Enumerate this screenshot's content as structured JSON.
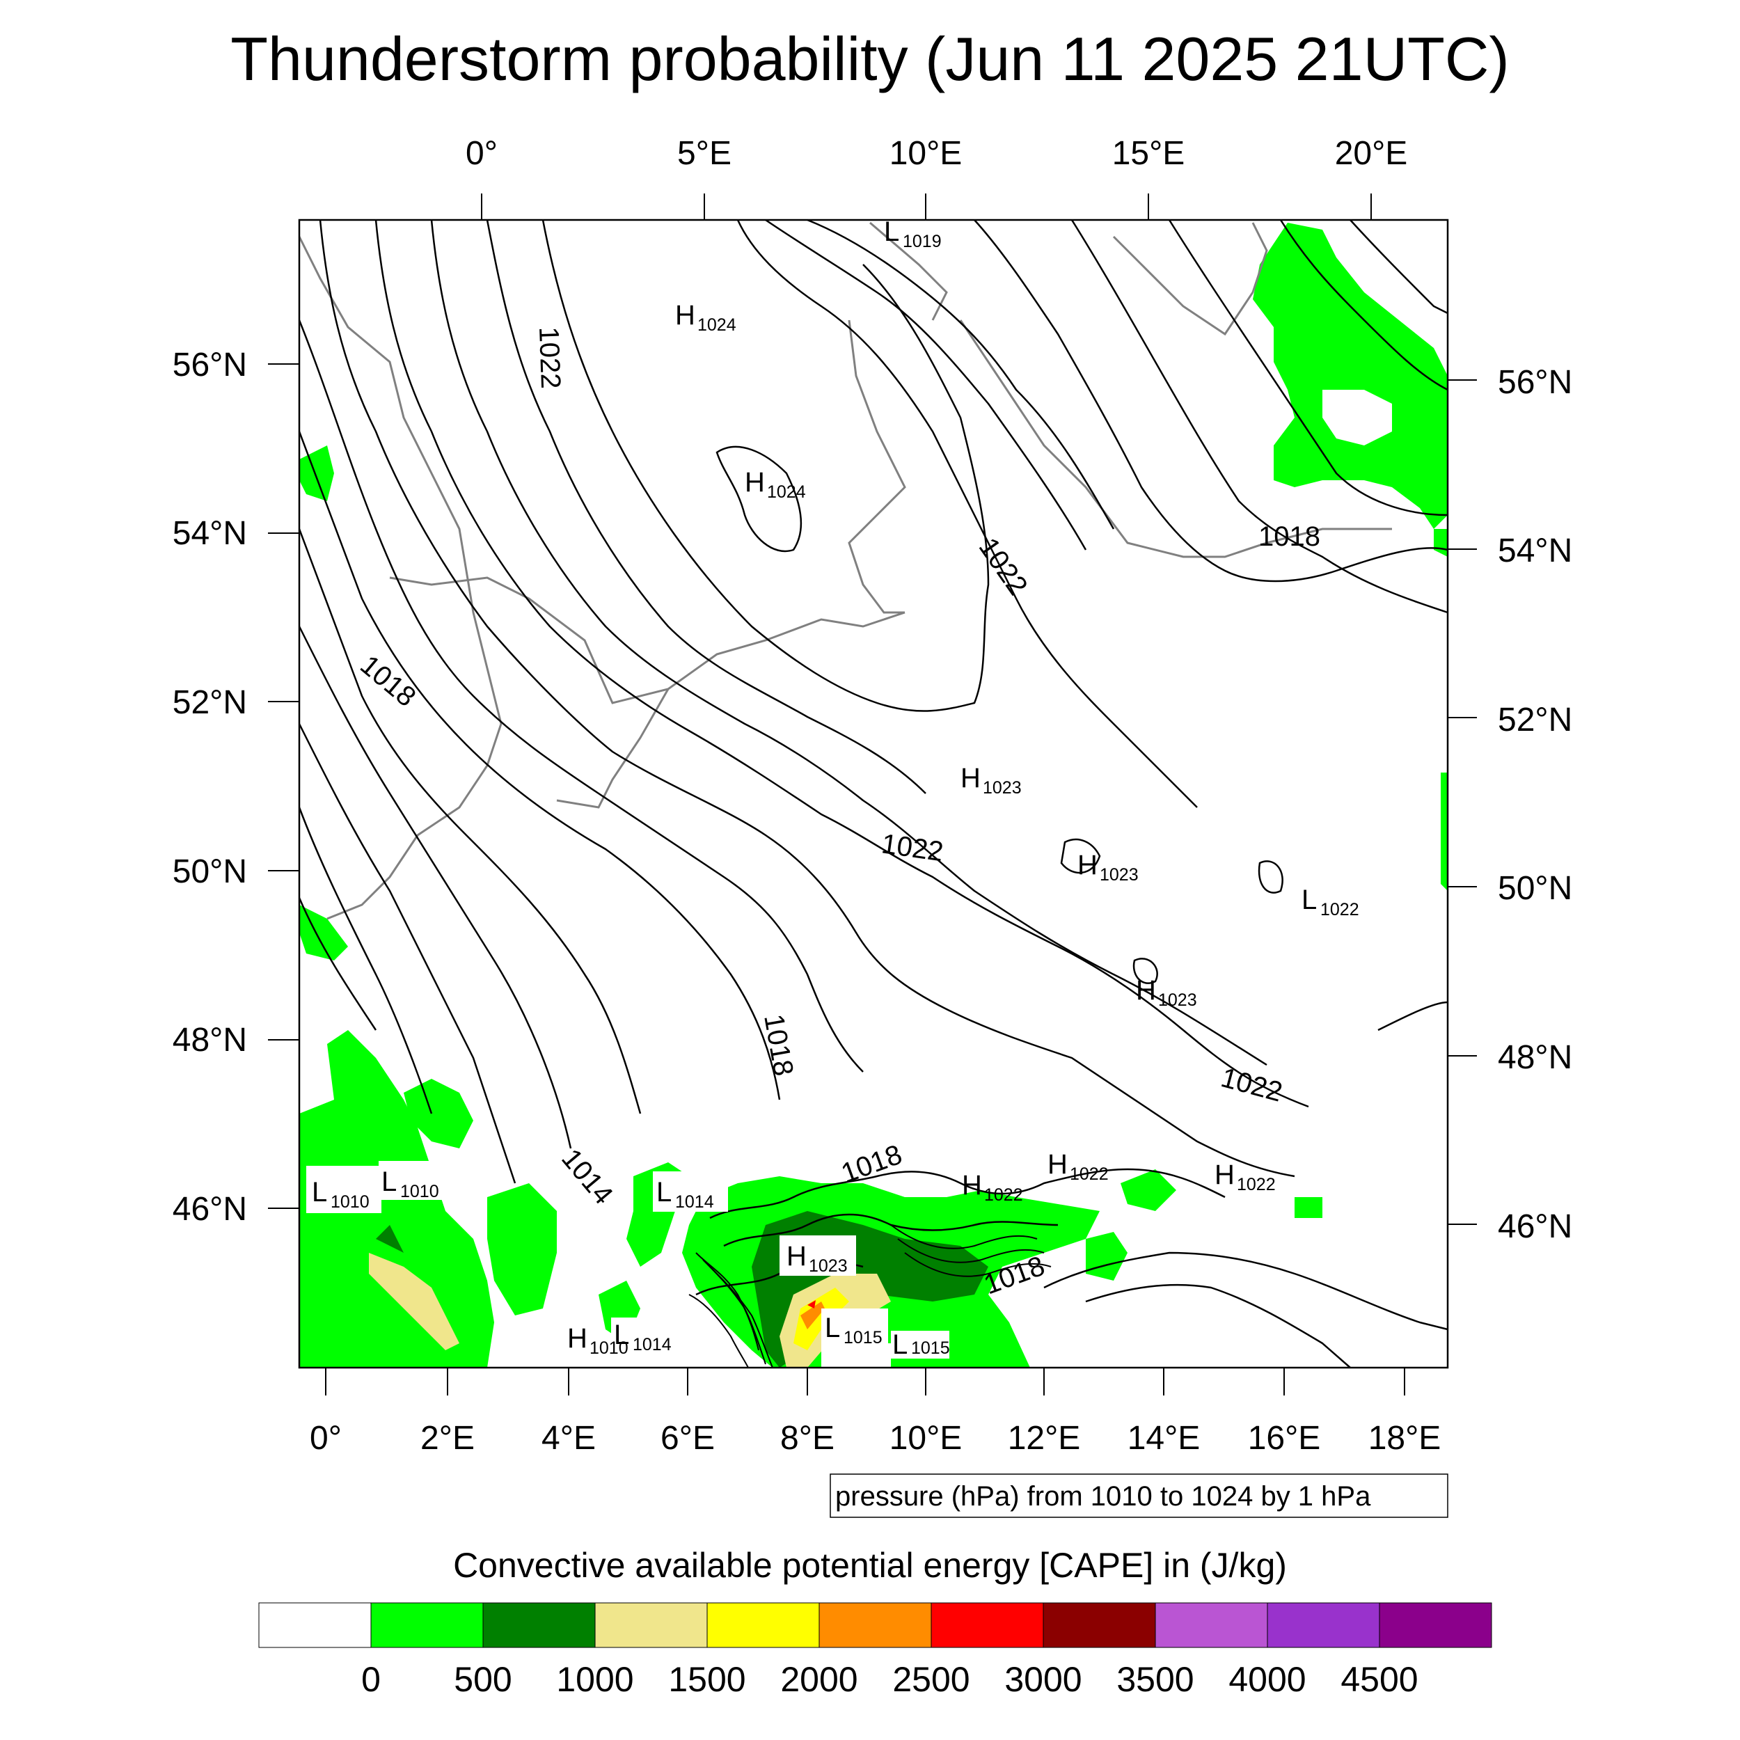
{
  "title": "Thunderstorm probability (Jun 11 2025 21UTC)",
  "top_lon_labels": [
    "0°",
    "5°E",
    "10°E",
    "15°E",
    "20°E"
  ],
  "bottom_lon_labels": [
    "0°",
    "2°E",
    "4°E",
    "6°E",
    "8°E",
    "10°E",
    "12°E",
    "14°E",
    "16°E",
    "18°E"
  ],
  "left_lat_labels": [
    "56°N",
    "54°N",
    "52°N",
    "50°N",
    "48°N",
    "46°N"
  ],
  "right_lat_labels": [
    "56°N",
    "54°N",
    "52°N",
    "50°N",
    "48°N",
    "46°N"
  ],
  "contour_info": "pressure (hPa) from 1010 to 1024 by 1 hPa",
  "colorbar_title": "Convective available potential energy [CAPE] in (J/kg)",
  "colorbar": {
    "colors": [
      "#ffffff",
      "#00ff00",
      "#008000",
      "#f0e68c",
      "#ffff00",
      "#ff8c00",
      "#ff0000",
      "#8b0000",
      "#ba55d3",
      "#9932cc",
      "#8b008b"
    ],
    "tick_labels": [
      "0",
      "500",
      "1000",
      "1500",
      "2000",
      "2500",
      "3000",
      "3500",
      "4000",
      "4500"
    ]
  },
  "pressure_centers": [
    {
      "type": "L",
      "value": "1019"
    },
    {
      "type": "H",
      "value": "1024"
    },
    {
      "type": "H",
      "value": "1024"
    },
    {
      "type": "H",
      "value": "1023"
    },
    {
      "type": "H",
      "value": "1023"
    },
    {
      "type": "L",
      "value": "1022"
    },
    {
      "type": "H",
      "value": "1023"
    },
    {
      "type": "H",
      "value": "1022"
    },
    {
      "type": "H",
      "value": "1022"
    },
    {
      "type": "H",
      "value": "1022"
    },
    {
      "type": "L",
      "value": "1010"
    },
    {
      "type": "L",
      "value": "1010"
    },
    {
      "type": "L",
      "value": "1014"
    },
    {
      "type": "H",
      "value": "1023"
    },
    {
      "type": "L",
      "value": "1014"
    },
    {
      "type": "H",
      "value": "1010"
    },
    {
      "type": "L",
      "value": "1015"
    },
    {
      "type": "L",
      "value": "1015"
    }
  ],
  "contour_labels": [
    "1022",
    "1022",
    "1018",
    "1022",
    "1018",
    "1018",
    "1022",
    "1014",
    "1018",
    "1018"
  ]
}
